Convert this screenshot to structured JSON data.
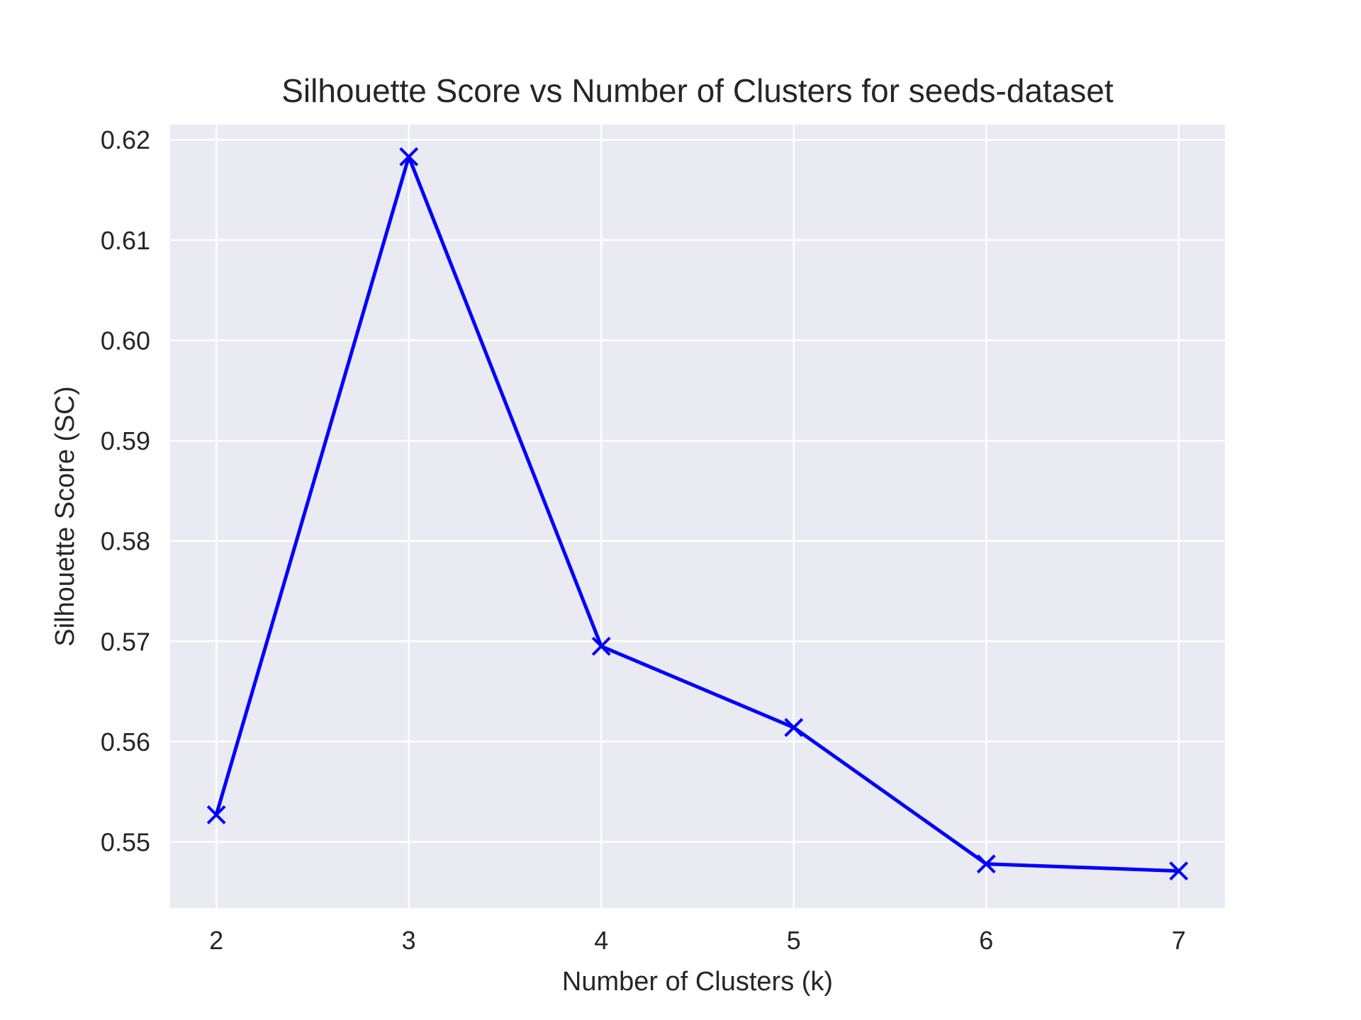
{
  "chart_data": {
    "type": "line",
    "title": "Silhouette Score vs Number of Clusters for seeds-dataset",
    "xlabel": "Number of Clusters (k)",
    "ylabel": "Silhouette Score (SC)",
    "x": [
      2,
      3,
      4,
      5,
      6,
      7
    ],
    "series": [
      {
        "values": [
          0.5527,
          0.6183,
          0.5695,
          0.5614,
          0.5478,
          0.5471
        ],
        "color": "#0000ff",
        "marker": "x"
      }
    ],
    "xlim": [
      1.76,
      7.24
    ],
    "ylim": [
      0.5434,
      0.6215
    ],
    "xticks": [
      2,
      3,
      4,
      5,
      6,
      7
    ],
    "yticks": [
      0.55,
      0.56,
      0.57,
      0.58,
      0.59,
      0.6,
      0.61,
      0.62
    ],
    "ytick_labels": [
      "0.55",
      "0.56",
      "0.57",
      "0.58",
      "0.59",
      "0.60",
      "0.61",
      "0.62"
    ],
    "grid": true,
    "background_color": "#eaeaf2",
    "grid_color": "#ffffff"
  }
}
